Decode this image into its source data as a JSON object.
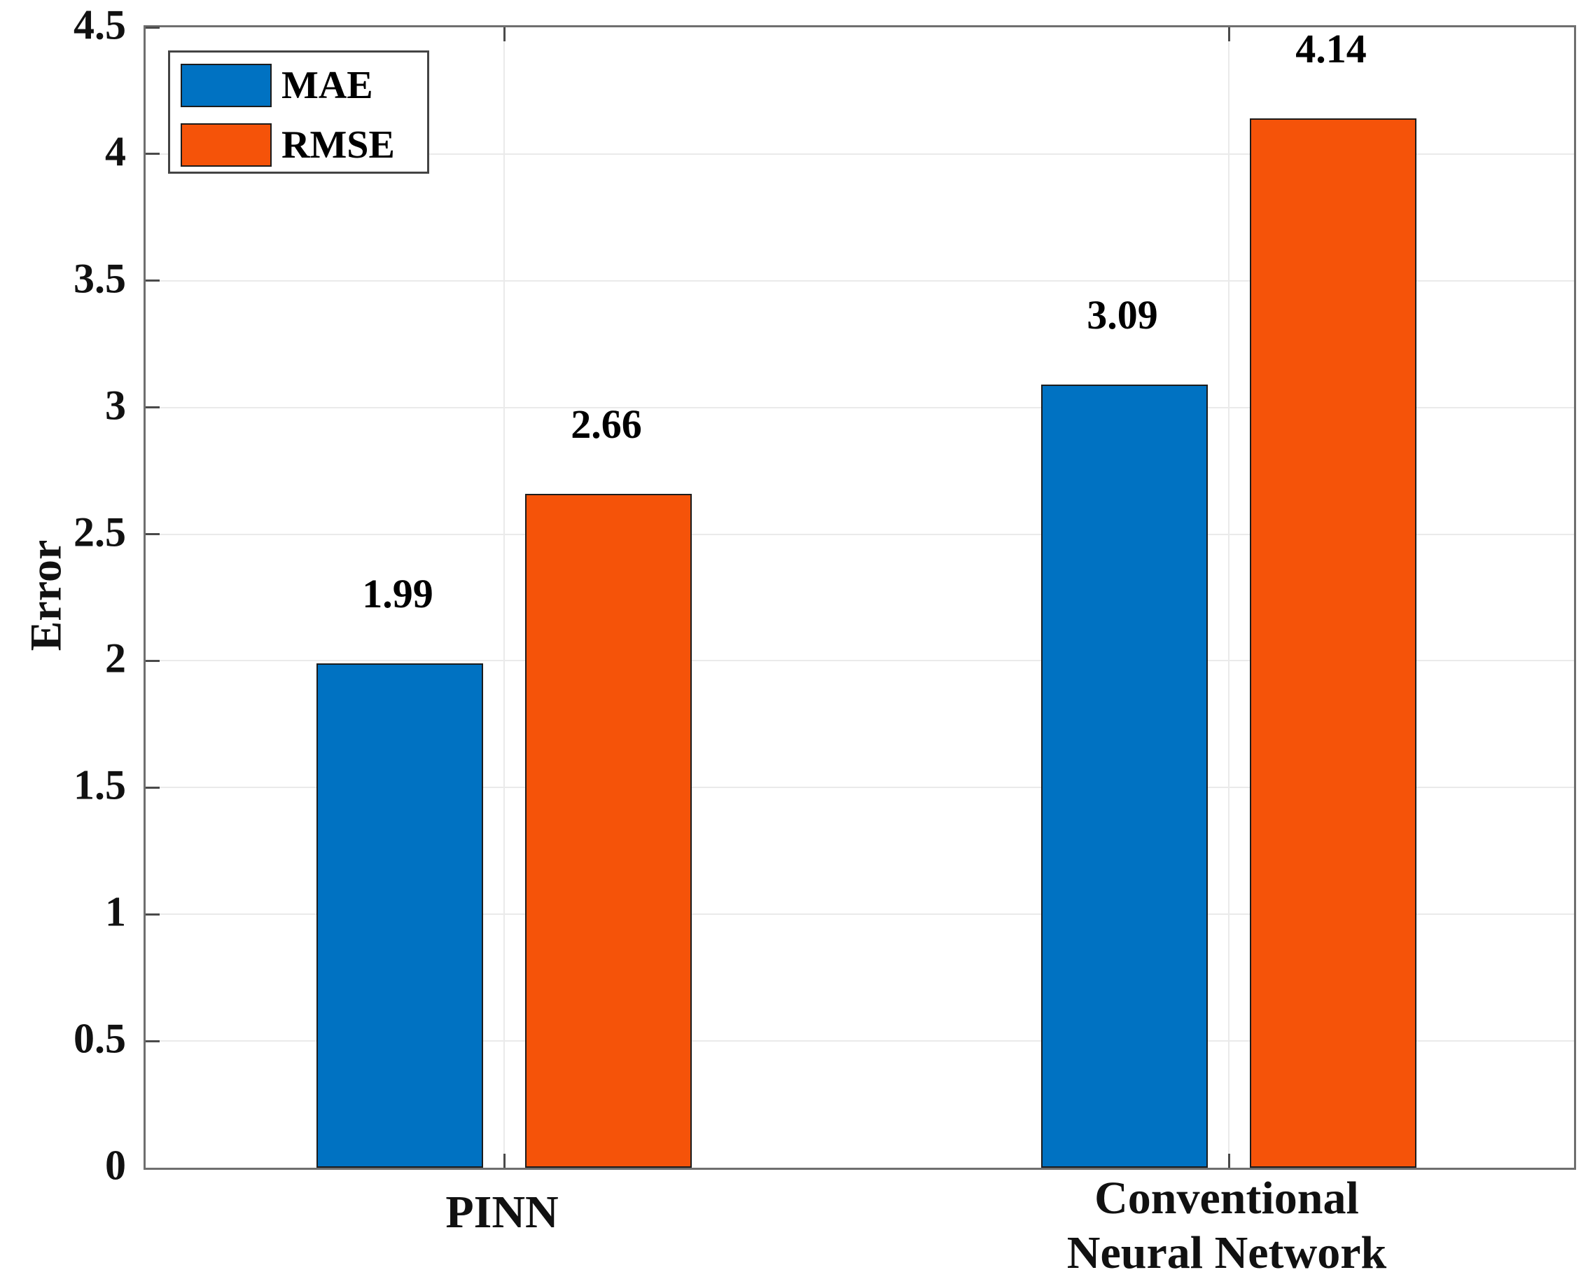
{
  "chart_data": {
    "type": "bar",
    "title": "",
    "categories": [
      {
        "lines": [
          "PINN"
        ]
      },
      {
        "lines": [
          "Conventional",
          "Neural Network"
        ]
      }
    ],
    "series": [
      {
        "name": "MAE",
        "color": "#0072C2",
        "values": [
          1.99,
          3.09
        ],
        "value_labels": [
          "1.99",
          "3.09"
        ]
      },
      {
        "name": "RMSE",
        "color": "#F55309",
        "values": [
          2.66,
          4.14
        ],
        "value_labels": [
          "2.66",
          "4.14"
        ]
      }
    ],
    "xlabel": "",
    "ylabel": "Error",
    "ylim": [
      0,
      4.5
    ],
    "ytick_step": 0.5,
    "yticks": [
      "0",
      "0.5",
      "1",
      "1.5",
      "2",
      "2.5",
      "3",
      "3.5",
      "4",
      "4.5"
    ],
    "grid": "on",
    "legend_position": "top-left",
    "bar_edge_color": "#1c1c1c",
    "grid_color": "#eaeaea",
    "axis_color": "#6f6f6f"
  },
  "legend": {
    "items": [
      {
        "label": "MAE",
        "color": "#0072C2"
      },
      {
        "label": "RMSE",
        "color": "#F55309"
      }
    ]
  },
  "axis": {
    "ylabel": "Error"
  }
}
